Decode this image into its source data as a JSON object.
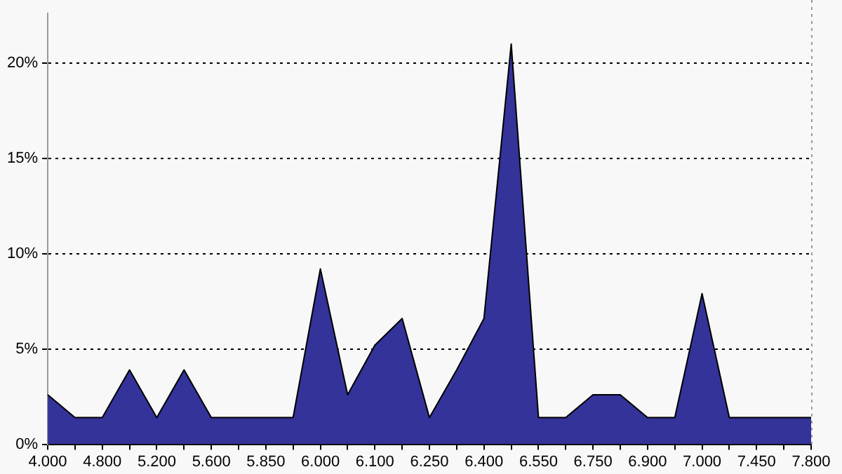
{
  "chart_data": {
    "type": "area",
    "categories": [
      "4.000",
      null,
      "4.800",
      null,
      "5.200",
      null,
      "5.600",
      null,
      "5.850",
      null,
      "6.000",
      null,
      "6.100",
      null,
      "6.250",
      null,
      "6.400",
      null,
      "6.550",
      null,
      "6.750",
      null,
      "6.900",
      null,
      "7.000",
      null,
      "7.450",
      null,
      "7.800"
    ],
    "series": [
      {
        "color": "#333399",
        "values": [
          2.6,
          1.4,
          1.4,
          3.9,
          1.4,
          3.9,
          1.4,
          1.4,
          1.4,
          1.4,
          9.2,
          2.6,
          5.2,
          6.6,
          1.4,
          3.9,
          6.6,
          21.0,
          1.4,
          1.4,
          2.6,
          2.6,
          1.4,
          1.4,
          7.9,
          1.4,
          1.4,
          1.4,
          1.4
        ]
      }
    ],
    "ylim": [
      0,
      22.6
    ],
    "yticks": [
      {
        "value": 0,
        "label": "0%"
      },
      {
        "value": 5,
        "label": "5%"
      },
      {
        "value": 10,
        "label": "10%"
      },
      {
        "value": 15,
        "label": "15%"
      },
      {
        "value": 20,
        "label": "20%"
      }
    ],
    "grid": "y",
    "legend": false,
    "marker": "none",
    "line_style": "solid"
  }
}
